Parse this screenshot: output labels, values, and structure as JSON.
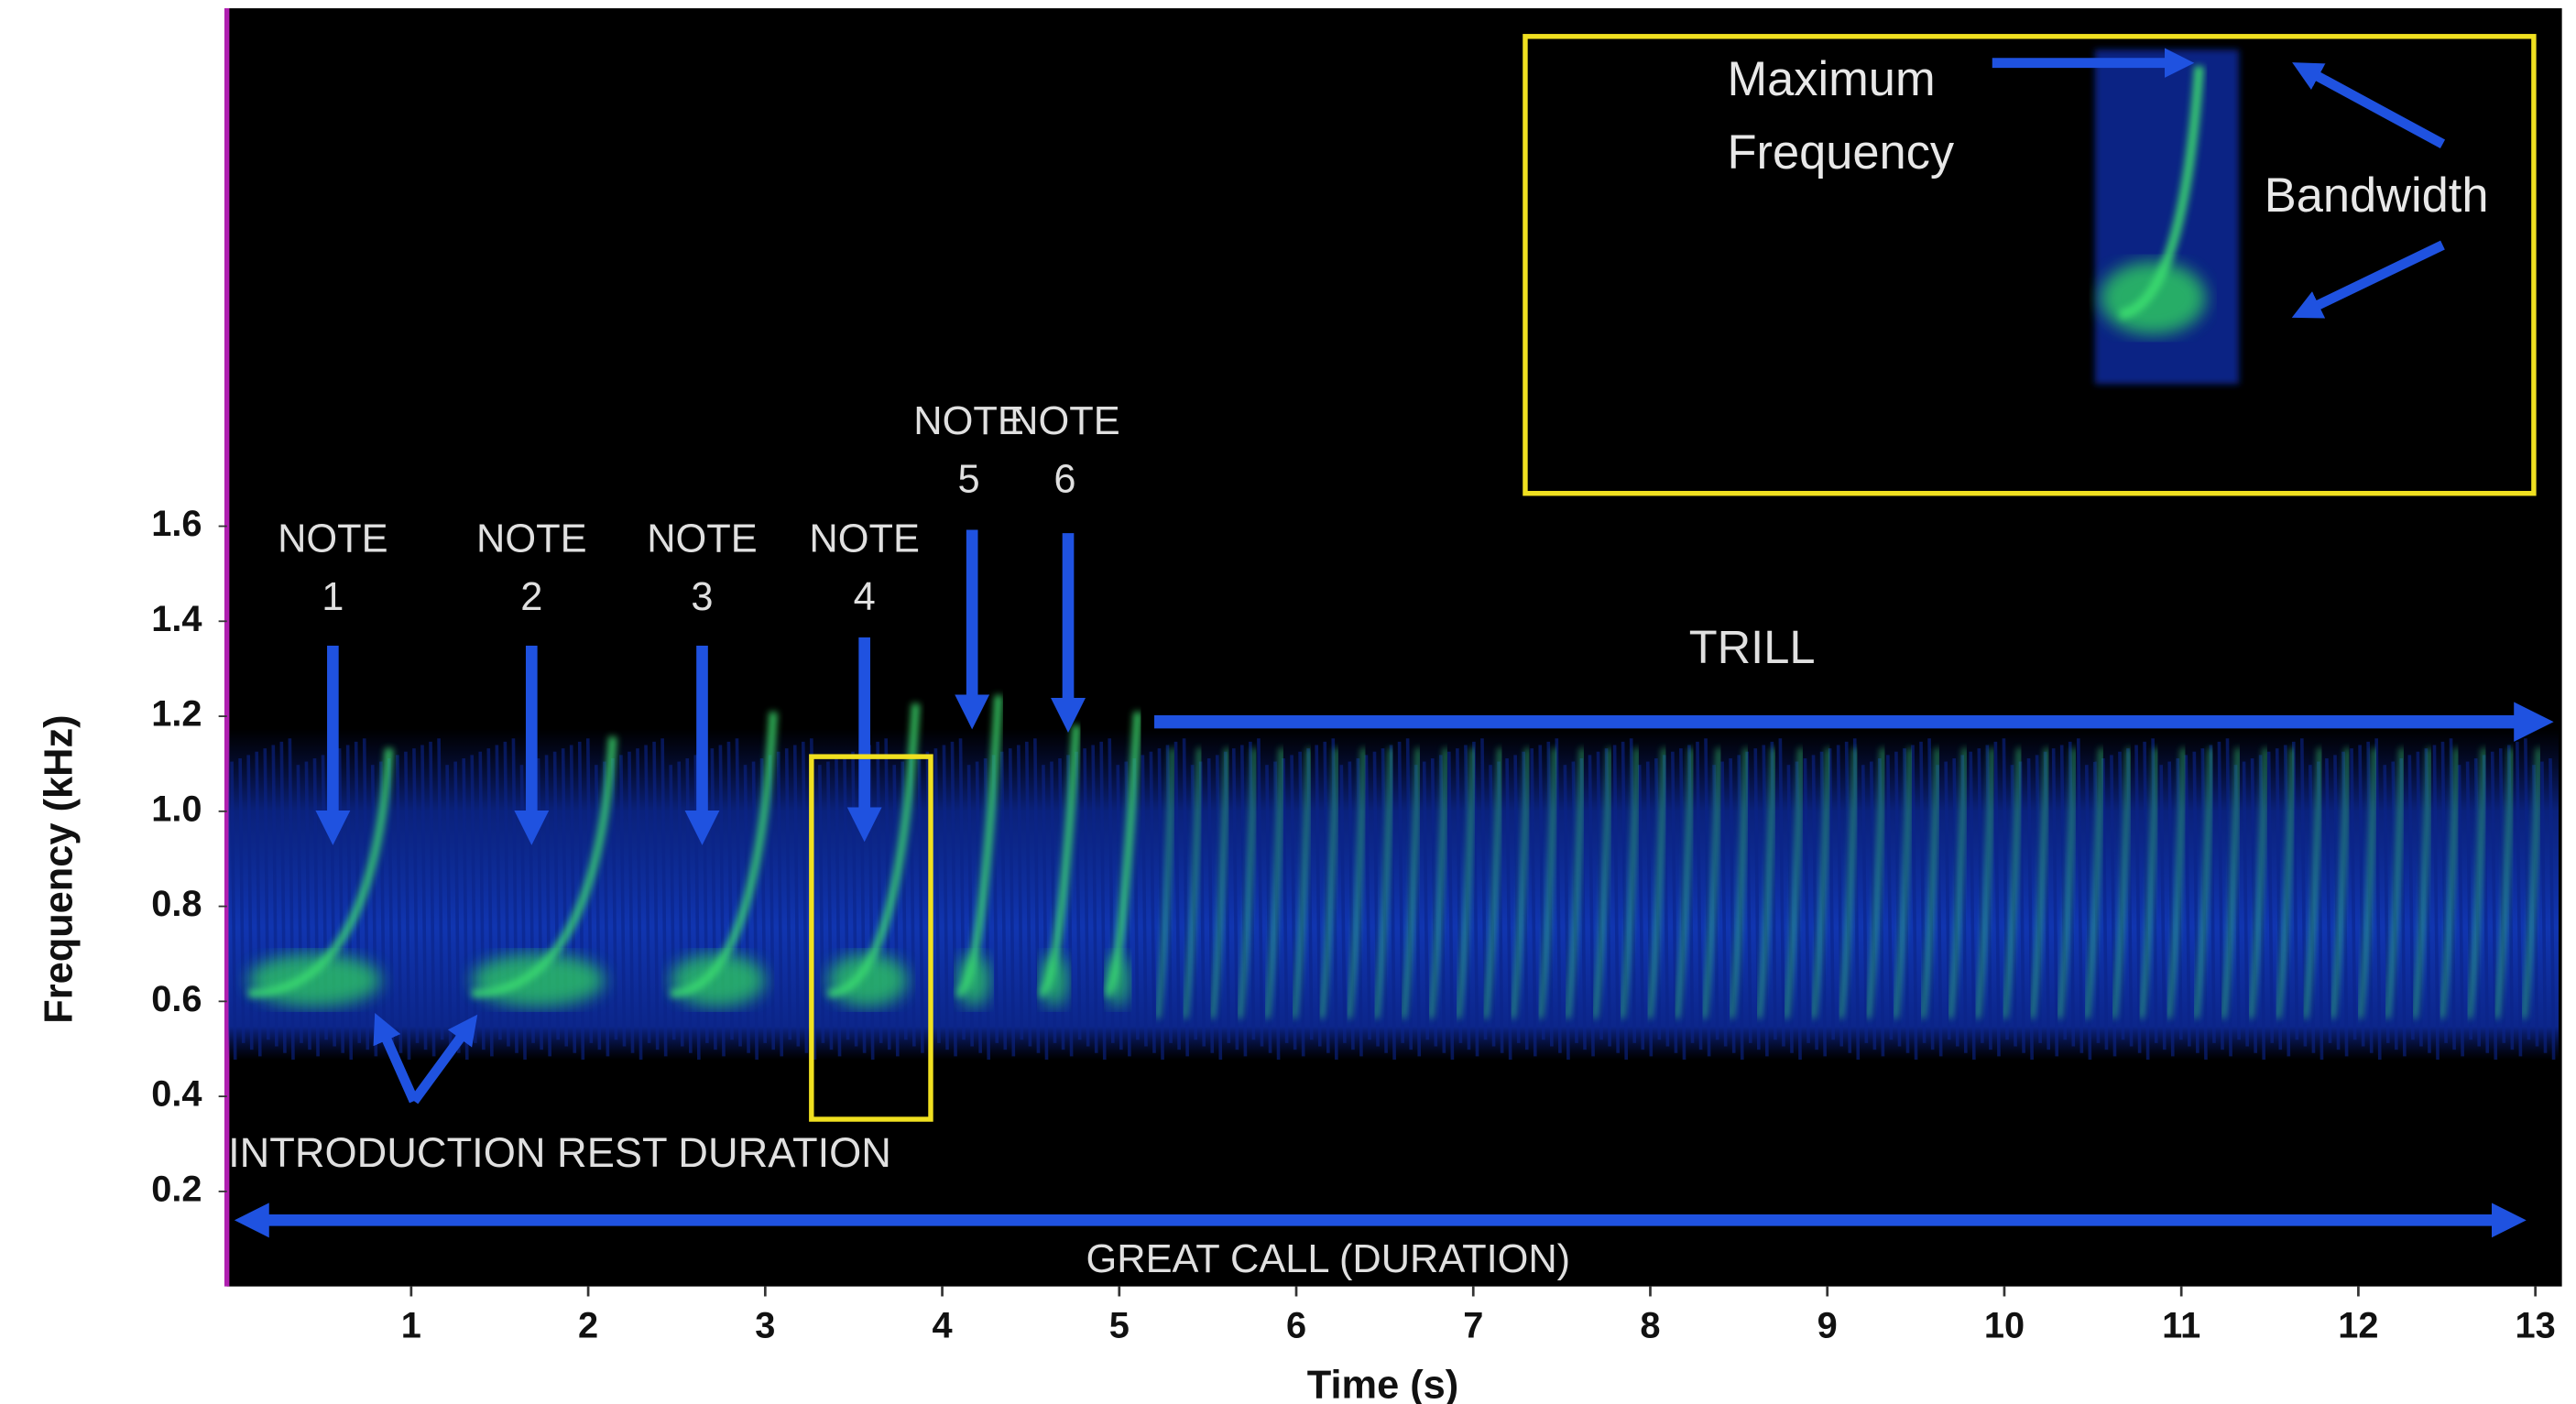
{
  "chart_data": {
    "type": "spectrogram",
    "xlabel": "Time (s)",
    "ylabel": "Frequency (kHz)",
    "xlim": [
      0,
      13.15
    ],
    "xticks": [
      1,
      2,
      3,
      4,
      5,
      6,
      7,
      8,
      9,
      10,
      11,
      12,
      13
    ],
    "ylim": [
      0,
      2.69
    ],
    "yticks": [
      0.2,
      0.4,
      0.6,
      0.8,
      {
        "value": 1,
        "label": "1.0"
      },
      1.2,
      1.4,
      1.6
    ],
    "notes": [
      {
        "lines": [
          "NOTE",
          "1"
        ]
      },
      {
        "lines": [
          "NOTE",
          "2"
        ]
      },
      {
        "lines": [
          "NOTE",
          "3"
        ]
      },
      {
        "lines": [
          "NOTE",
          "4"
        ]
      },
      {
        "lines": [
          "NOTE",
          "5"
        ]
      },
      {
        "lines": [
          "NOTE",
          "6"
        ]
      }
    ],
    "trill_label": "TRILL",
    "rest_label": "INTRODUCTION REST DURATION",
    "duration_label": "GREAT CALL (DURATION)",
    "inset": {
      "max_frequency": [
        "Maximum",
        "Frequency"
      ],
      "bandwidth": "Bandwidth"
    }
  }
}
